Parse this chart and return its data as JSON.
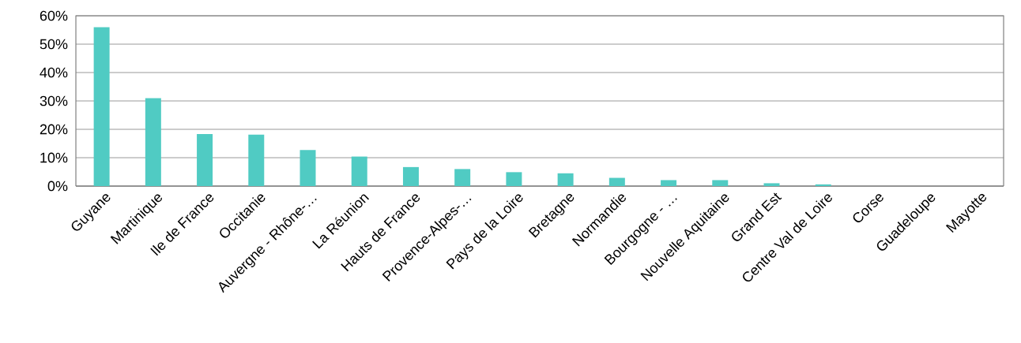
{
  "chart_data": {
    "type": "bar",
    "categories": [
      "Guyane",
      "Martinique",
      "Ile de France",
      "Occitanie",
      "Auvergne - Rhône-…",
      "La Réunion",
      "Hauts de France",
      "Provence-Alpes-…",
      "Pays de la Loire",
      "Bretagne",
      "Normandie",
      "Bourgogne - …",
      "Nouvelle Aquitaine",
      "Grand Est",
      "Centre Val de Loire",
      "Corse",
      "Guadeloupe",
      "Mayotte"
    ],
    "values": [
      56,
      31,
      18.3,
      18.1,
      12.7,
      10.4,
      6.7,
      6.0,
      4.9,
      4.5,
      2.9,
      2.1,
      2.1,
      1.0,
      0.6,
      0,
      0,
      0
    ],
    "color": "#50cbc3",
    "ylim": [
      0,
      60
    ],
    "yticks": [
      {
        "value": 0,
        "label": "0%"
      },
      {
        "value": 10,
        "label": "10%"
      },
      {
        "value": 20,
        "label": "20%"
      },
      {
        "value": 30,
        "label": "30%"
      },
      {
        "value": 40,
        "label": "40%"
      },
      {
        "value": 50,
        "label": "50%"
      },
      {
        "value": 60,
        "label": "60%"
      }
    ],
    "grid": "y"
  }
}
